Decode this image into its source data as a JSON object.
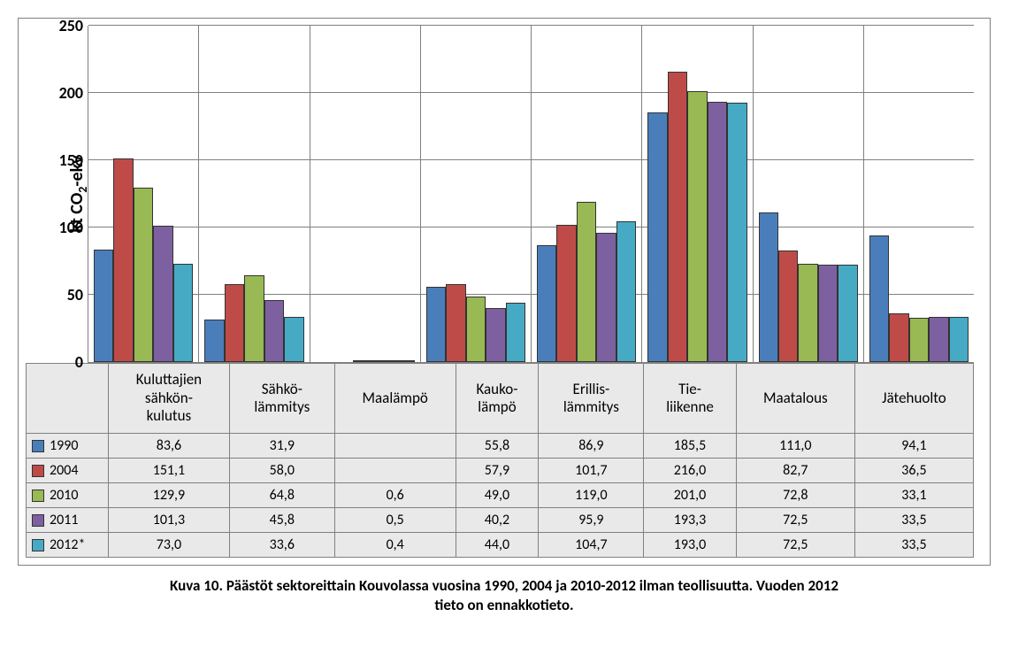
{
  "chart": {
    "type": "bar",
    "ylabel_prefix": "kt CO",
    "ylabel_sub": "2",
    "ylabel_suffix": "-ekv",
    "ylim": [
      0,
      250
    ],
    "yticks": [
      0,
      50,
      100,
      150,
      200,
      250
    ],
    "ytick_fontsize": 18,
    "ylabel_fontsize": 20,
    "background_color": "#ffffff",
    "grid_color": "#808080",
    "categories": [
      "Kuluttajien sähkön-kulutus",
      "Sähkö-lämmitys",
      "Maalämpö",
      "Kauko-lämpö",
      "Erillis-lämmitys",
      "Tie-liikenne",
      "Maatalous",
      "Jätehuolto"
    ],
    "category_lines": [
      [
        "Kuluttajien",
        "sähkön-",
        "kulutus"
      ],
      [
        "Sähkö-",
        "lämmitys"
      ],
      [
        "Maalämpö"
      ],
      [
        "Kauko-",
        "lämpö"
      ],
      [
        "Erillis-",
        "lämmitys"
      ],
      [
        "Tie-",
        "liikenne"
      ],
      [
        "Maatalous"
      ],
      [
        "Jätehuolto"
      ]
    ],
    "series": [
      {
        "name": "1990",
        "color": "#4a7ebb",
        "values": [
          83.6,
          31.9,
          null,
          55.8,
          86.9,
          185.5,
          111.0,
          94.1
        ],
        "display": [
          "83,6",
          "31,9",
          "",
          "55,8",
          "86,9",
          "185,5",
          "111,0",
          "94,1"
        ]
      },
      {
        "name": "2004",
        "color": "#be4b48",
        "values": [
          151.1,
          58.0,
          null,
          57.9,
          101.7,
          216.0,
          82.7,
          36.5
        ],
        "display": [
          "151,1",
          "58,0",
          "",
          "57,9",
          "101,7",
          "216,0",
          "82,7",
          "36,5"
        ]
      },
      {
        "name": "2010",
        "color": "#98b954",
        "values": [
          129.9,
          64.8,
          0.6,
          49.0,
          119.0,
          201.0,
          72.8,
          33.1
        ],
        "display": [
          "129,9",
          "64,8",
          "0,6",
          "49,0",
          "119,0",
          "201,0",
          "72,8",
          "33,1"
        ]
      },
      {
        "name": "2011",
        "color": "#7d60a0",
        "values": [
          101.3,
          45.8,
          0.5,
          40.2,
          95.9,
          193.3,
          72.5,
          33.5
        ],
        "display": [
          "101,3",
          "45,8",
          "0,5",
          "40,2",
          "95,9",
          "193,3",
          "72,5",
          "33,5"
        ]
      },
      {
        "name": "2012*",
        "color": "#46aac5",
        "values": [
          73.0,
          33.6,
          0.4,
          44.0,
          104.7,
          193.0,
          72.5,
          33.5
        ],
        "display": [
          "73,0",
          "33,6",
          "0,4",
          "44,0",
          "104,7",
          "193,0",
          "72,5",
          "33,5"
        ]
      }
    ],
    "bar_border_color": "#333333",
    "table_bg": "#e9e9e9",
    "table_border": "#808080",
    "category_fontsize": 17,
    "cell_fontsize": 16
  },
  "caption_line1": "Kuva 10. Päästöt sektoreittain Kouvolassa vuosina 1990, 2004 ja 2010-2012 ilman teollisuutta. Vuoden 2012",
  "caption_line2": "tieto on ennakkotieto.",
  "caption_fontsize": 17
}
